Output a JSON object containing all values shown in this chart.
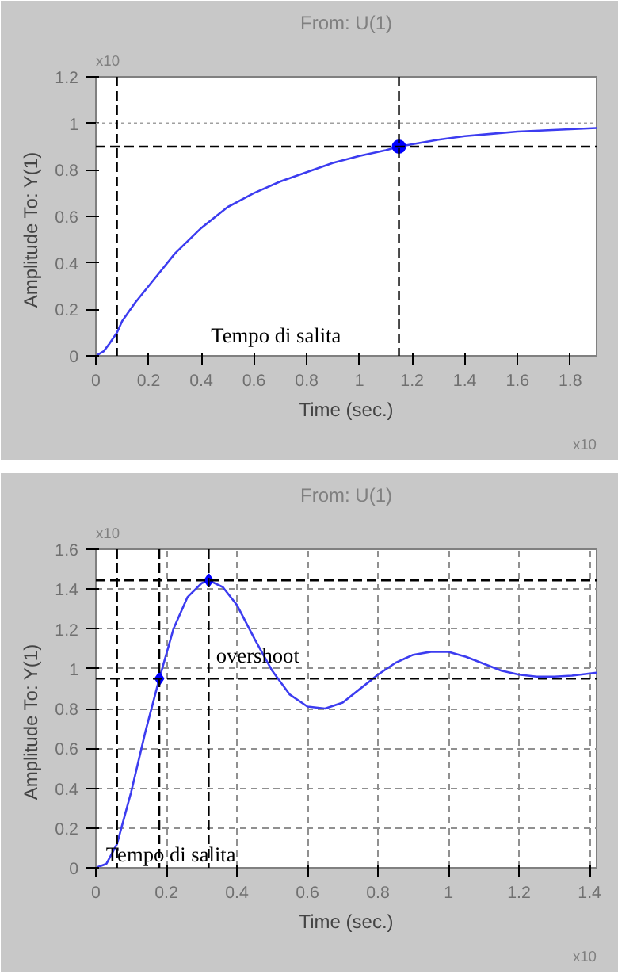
{
  "chart_data": [
    {
      "type": "line",
      "title": "From: U(1)",
      "xlabel": "Time (sec.)",
      "ylabel": "Amplitude",
      "y2label": "To: Y(1)",
      "xlim": [
        0,
        1.9
      ],
      "xticks": [
        0,
        0.2,
        0.4,
        0.6,
        0.8,
        1,
        1.2,
        1.4,
        1.6,
        1.8
      ],
      "ylim": [
        0,
        1.2
      ],
      "yticks": [
        0,
        0.2,
        0.4,
        0.6,
        0.8,
        1,
        1.2
      ],
      "grid": false,
      "series": [
        {
          "type": "line",
          "color": "#3c3cf0",
          "x": [
            0,
            0.03,
            0.05,
            0.08,
            0.1,
            0.15,
            0.2,
            0.3,
            0.4,
            0.5,
            0.6,
            0.7,
            0.8,
            0.9,
            1.0,
            1.1,
            1.15,
            1.2,
            1.3,
            1.4,
            1.5,
            1.6,
            1.7,
            1.8,
            1.9
          ],
          "values": [
            0,
            0.02,
            0.05,
            0.1,
            0.15,
            0.23,
            0.3,
            0.44,
            0.55,
            0.64,
            0.7,
            0.75,
            0.79,
            0.83,
            0.86,
            0.885,
            0.9,
            0.91,
            0.93,
            0.945,
            0.955,
            0.965,
            0.97,
            0.975,
            0.98
          ]
        },
        {
          "type": "scatter",
          "color": "#0000ff",
          "marker": "circle",
          "x": [
            1.15
          ],
          "values": [
            0.9
          ]
        }
      ],
      "ref_lines": [
        {
          "axis": "y",
          "value": 1,
          "color": "#a0a0a0",
          "line_style": "dotted"
        },
        {
          "axis": "y",
          "value": 0.9,
          "color": "#000000",
          "line_style": "dashed"
        },
        {
          "axis": "x",
          "value": 0.08,
          "color": "#000000",
          "line_style": "dashed"
        },
        {
          "axis": "x",
          "value": 1.15,
          "color": "#000000",
          "line_style": "dashed"
        }
      ],
      "annotations": [
        "Tempo di salita",
        "x10",
        "x10"
      ]
    },
    {
      "type": "line",
      "title": "From: U(1)",
      "xlabel": "Time (sec.)",
      "ylabel": "Amplitude",
      "y2label": "To: Y(1)",
      "xlim": [
        0,
        1.42
      ],
      "xticks": [
        0,
        0.2,
        0.4,
        0.6,
        0.8,
        1,
        1.2,
        1.4
      ],
      "ylim": [
        0,
        1.6
      ],
      "yticks": [
        0,
        0.2,
        0.4,
        0.6,
        0.8,
        1,
        1.2,
        1.4,
        1.6
      ],
      "grid": true,
      "series": [
        {
          "type": "line",
          "color": "#3c3cf0",
          "x": [
            0,
            0.03,
            0.06,
            0.1,
            0.14,
            0.18,
            0.22,
            0.26,
            0.3,
            0.32,
            0.36,
            0.4,
            0.45,
            0.5,
            0.55,
            0.6,
            0.65,
            0.7,
            0.75,
            0.8,
            0.85,
            0.9,
            0.95,
            1.0,
            1.05,
            1.1,
            1.15,
            1.2,
            1.25,
            1.3,
            1.35,
            1.42
          ],
          "values": [
            0,
            0.02,
            0.12,
            0.38,
            0.68,
            0.95,
            1.2,
            1.36,
            1.43,
            1.444,
            1.41,
            1.32,
            1.15,
            0.99,
            0.87,
            0.81,
            0.8,
            0.83,
            0.9,
            0.97,
            1.03,
            1.07,
            1.085,
            1.085,
            1.06,
            1.025,
            0.99,
            0.97,
            0.96,
            0.96,
            0.965,
            0.98
          ]
        },
        {
          "type": "scatter",
          "color": "#0000ff",
          "marker": "diamond",
          "x": [
            0.18,
            0.32
          ],
          "values": [
            0.95,
            1.444
          ]
        }
      ],
      "ref_lines": [
        {
          "axis": "y",
          "value": 0.95,
          "color": "#000000",
          "line_style": "dashed"
        },
        {
          "axis": "y",
          "value": 1.444,
          "color": "#000000",
          "line_style": "dashed"
        },
        {
          "axis": "x",
          "value": 0.06,
          "color": "#000000",
          "line_style": "dashed"
        },
        {
          "axis": "x",
          "value": 0.18,
          "color": "#000000",
          "line_style": "dashed"
        },
        {
          "axis": "x",
          "value": 0.32,
          "color": "#000000",
          "line_style": "dashed"
        }
      ],
      "annotations": [
        "overshoot",
        "Tempo di salita",
        "x10",
        "x10"
      ]
    }
  ]
}
